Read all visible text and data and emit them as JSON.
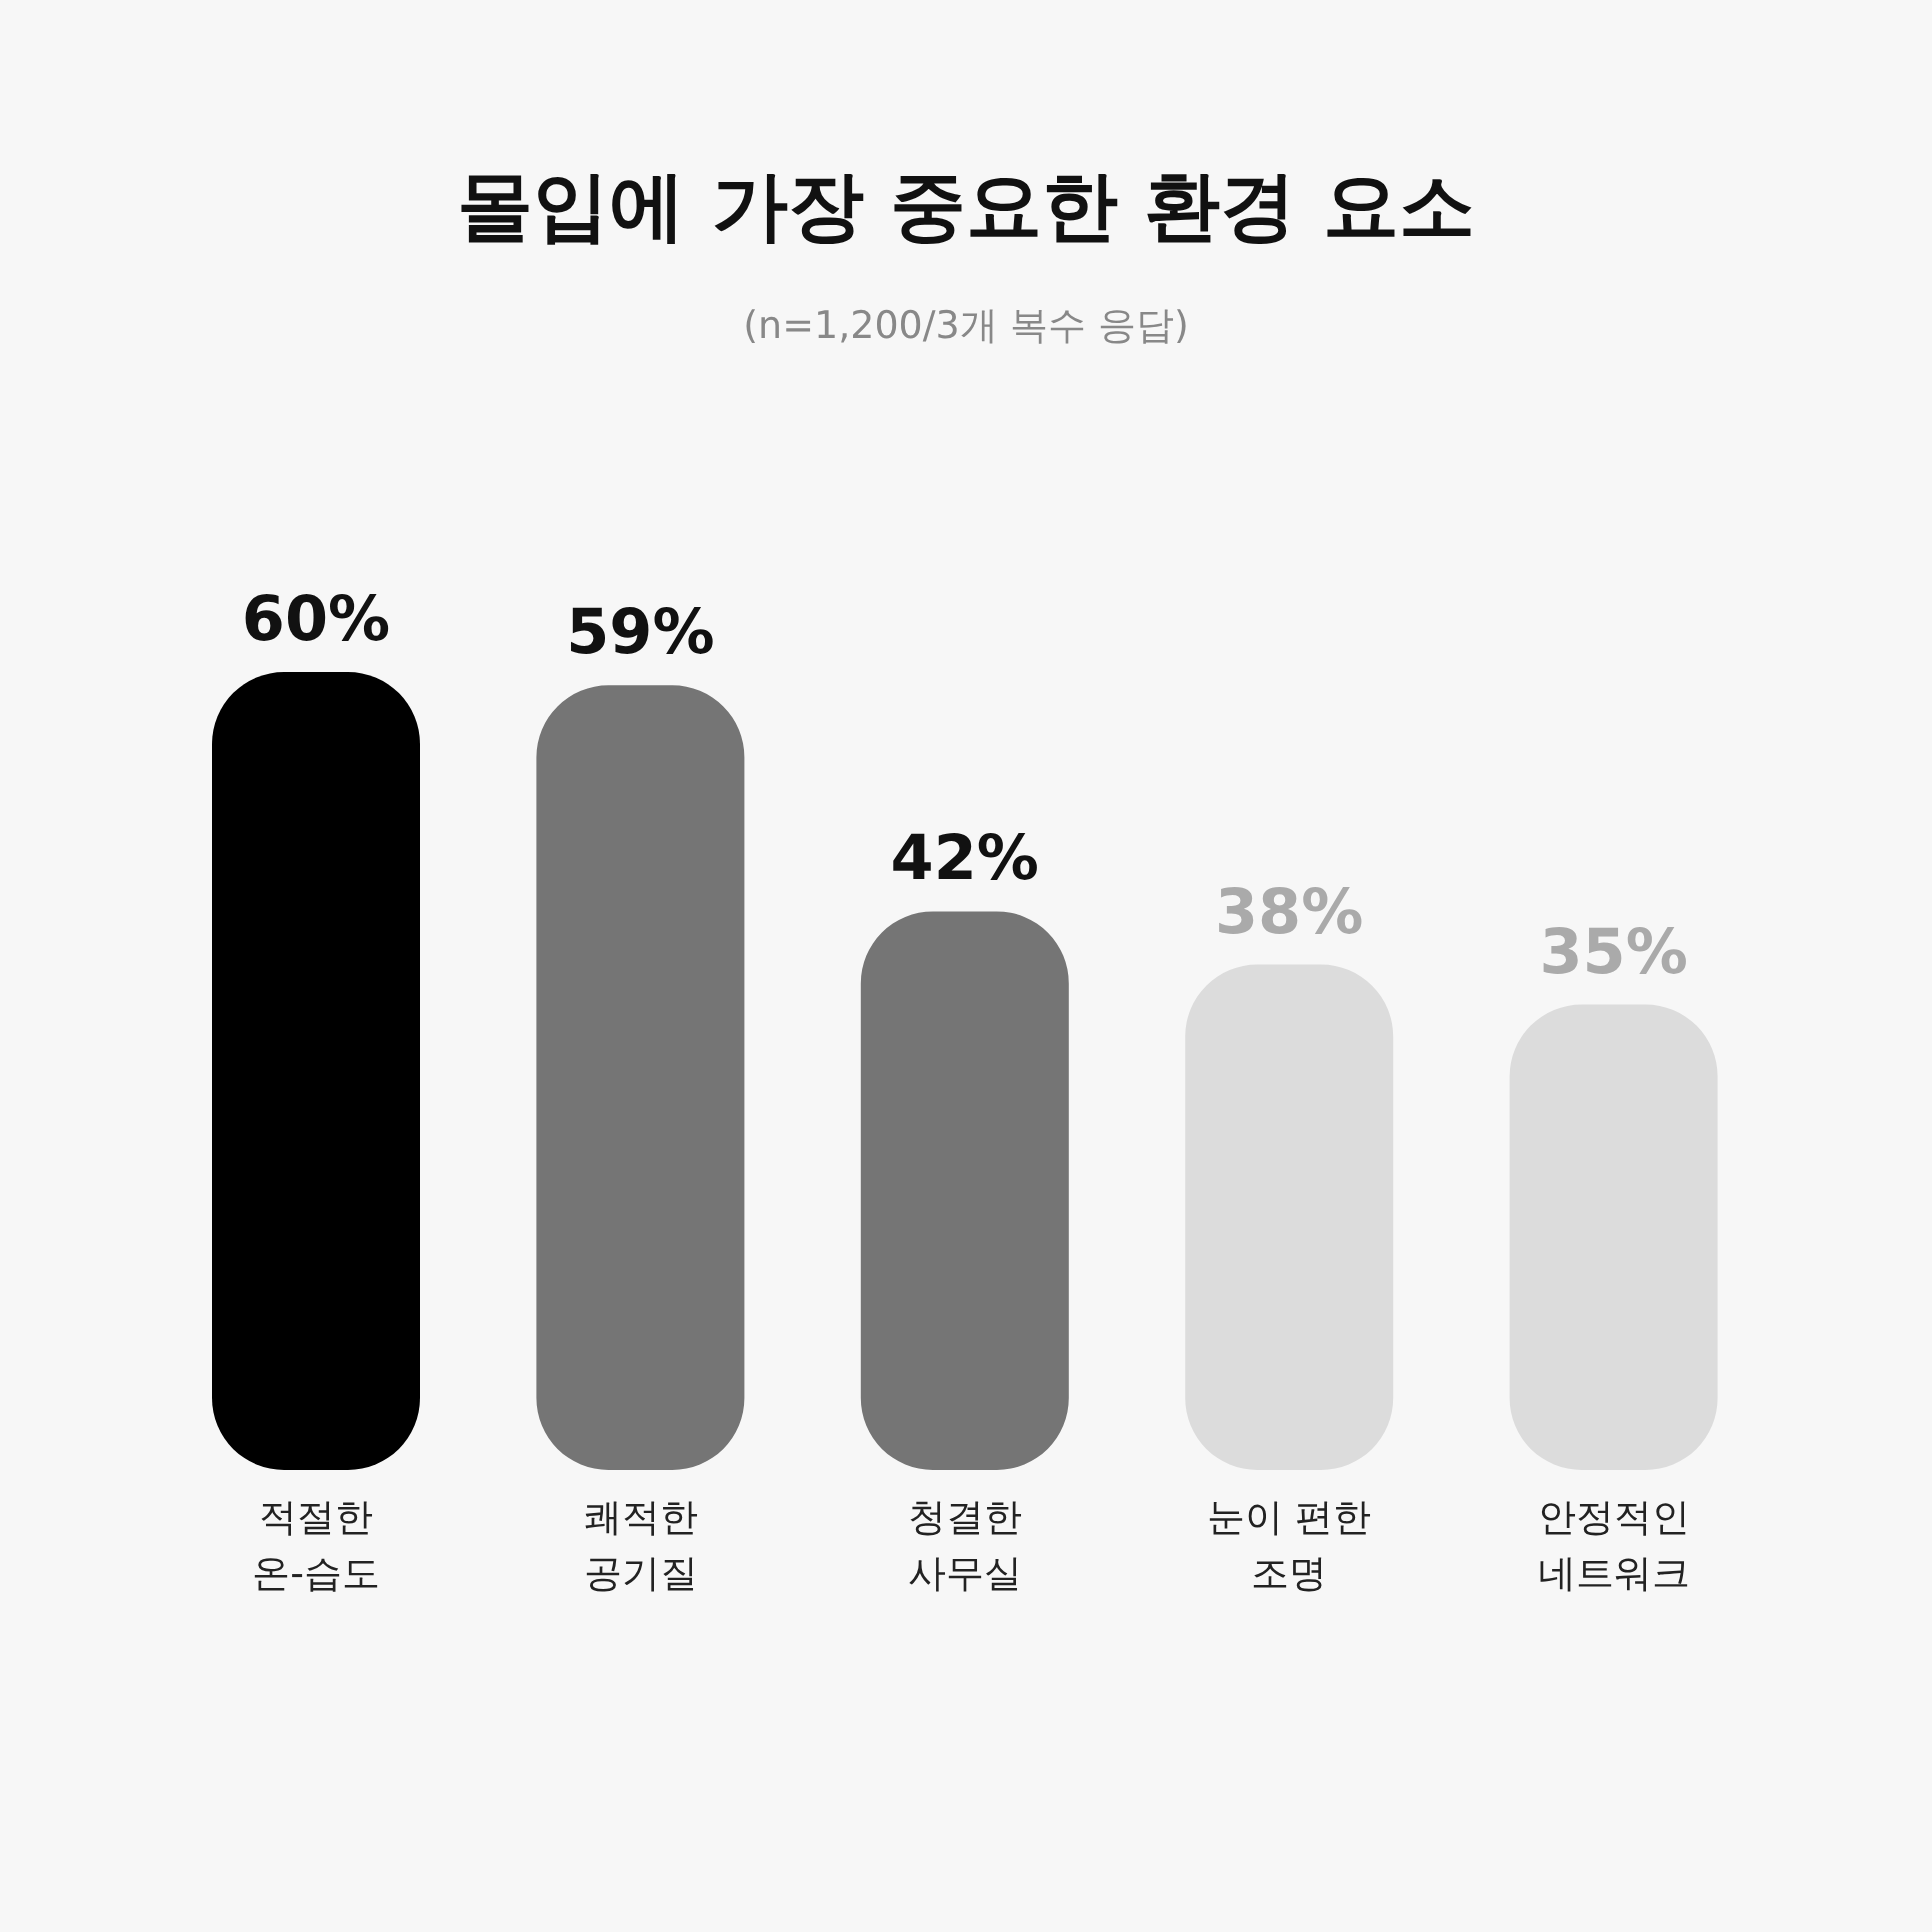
{
  "chart_data": {
    "type": "bar",
    "title": "몰입에 가장 중요한 환경 요소",
    "subtitle": "(n=1,200/3개 복수 응답)",
    "categories": [
      "적절한\n온-습도",
      "쾌적한\n공기질",
      "청결한\n사무실",
      "눈이 편한\n조명",
      "안정적인\n네트워크"
    ],
    "values": [
      60,
      59,
      42,
      38,
      35
    ],
    "value_labels": [
      "60%",
      "59%",
      "42%",
      "38%",
      "35%"
    ],
    "colors": [
      "#000000",
      "#757575",
      "#757575",
      "#dcdcdc",
      "#dcdcdc"
    ]
  }
}
